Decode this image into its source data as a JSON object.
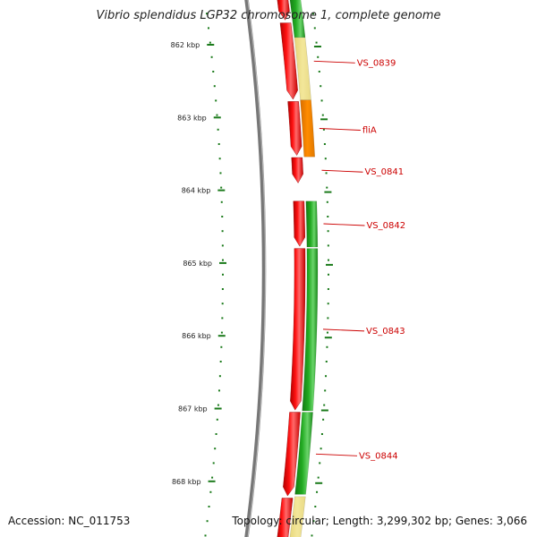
{
  "title": "Vibrio splendidus LGP32 chromosome 1, complete genome",
  "footer": {
    "accession": "Accession: NC_011753",
    "summary": "Topology: circular; Length: 3,299,302 bp; Genes: 3,066"
  },
  "colors": {
    "backbone": "#888888",
    "tick": "#1a7a1a",
    "label": "#cc0000",
    "cds_forward": "#ff1111",
    "cds_reverse": "#22aa22",
    "cds_pale": "#f3e79a",
    "cds_orange": "#ff8c00"
  },
  "ticks": [
    {
      "label": "862 kbp",
      "position": 862000
    },
    {
      "label": "863 kbp",
      "position": 863000
    },
    {
      "label": "864 kbp",
      "position": 864000
    },
    {
      "label": "865 kbp",
      "position": 865000
    },
    {
      "label": "866 kbp",
      "position": 866000
    },
    {
      "label": "867 kbp",
      "position": 867000
    },
    {
      "label": "868 kbp",
      "position": 868000
    }
  ],
  "genes": [
    {
      "label": "VS_0839",
      "start": 861700,
      "end": 862750,
      "strand": "+"
    },
    {
      "label": "fliA",
      "start": 862780,
      "end": 863520,
      "strand": "+"
    },
    {
      "label": "VS_0841",
      "start": 863550,
      "end": 863900,
      "strand": "+"
    },
    {
      "label": "VS_0842",
      "start": 864150,
      "end": 864770,
      "strand": "+"
    },
    {
      "label": "VS_0843",
      "start": 864800,
      "end": 867020,
      "strand": "+"
    },
    {
      "label": "VS_0844",
      "start": 867050,
      "end": 868200,
      "strand": "+"
    }
  ]
}
